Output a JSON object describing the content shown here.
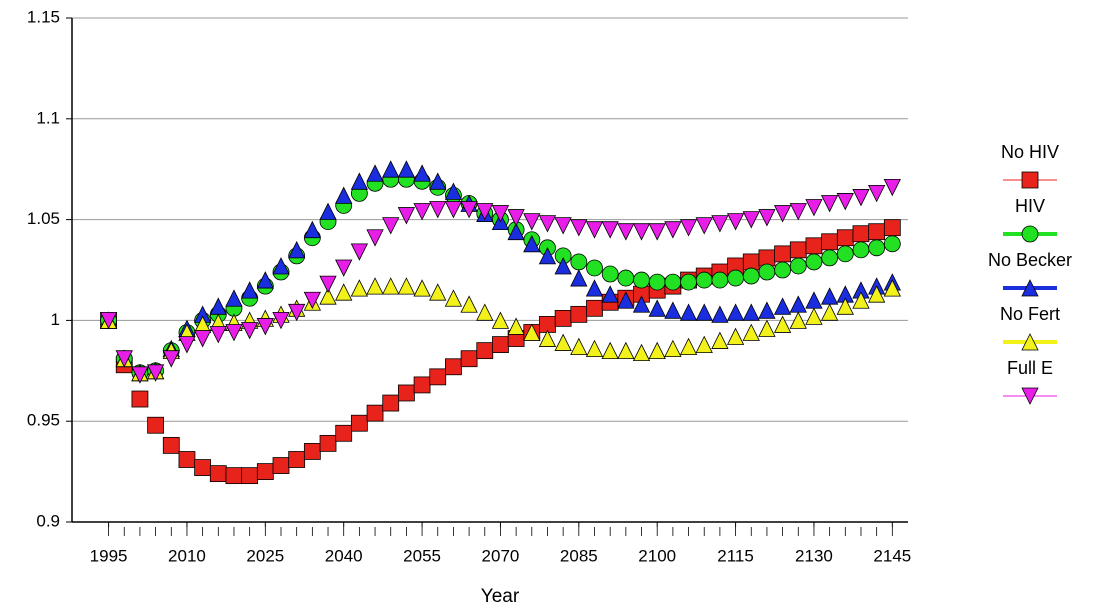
{
  "chart_data": {
    "type": "scatter",
    "xlabel": "Year",
    "x": [
      1995,
      1998,
      2001,
      2004,
      2007,
      2010,
      2013,
      2016,
      2019,
      2022,
      2025,
      2028,
      2031,
      2034,
      2037,
      2040,
      2043,
      2046,
      2049,
      2052,
      2055,
      2058,
      2061,
      2064,
      2067,
      2070,
      2073,
      2076,
      2079,
      2082,
      2085,
      2088,
      2091,
      2094,
      2097,
      2100,
      2103,
      2106,
      2109,
      2112,
      2115,
      2118,
      2121,
      2124,
      2127,
      2130,
      2133,
      2136,
      2139,
      2142,
      2145
    ],
    "xlim": [
      1988,
      2148
    ],
    "xticks": [
      1995,
      2010,
      2025,
      2040,
      2055,
      2070,
      2085,
      2100,
      2115,
      2130,
      2145
    ],
    "ylim": [
      0.9,
      1.15
    ],
    "yticks": [
      0.9,
      0.95,
      1,
      1.05,
      1.1,
      1.15
    ],
    "grid": true,
    "series": [
      {
        "name": "No HIV",
        "color": "#e8231c",
        "marker": "square",
        "values": [
          1.0,
          0.978,
          0.961,
          0.948,
          0.938,
          0.931,
          0.927,
          0.924,
          0.923,
          0.923,
          0.925,
          0.928,
          0.931,
          0.935,
          0.939,
          0.944,
          0.949,
          0.954,
          0.959,
          0.964,
          0.968,
          0.972,
          0.977,
          0.981,
          0.985,
          0.988,
          0.991,
          0.994,
          0.998,
          1.001,
          1.003,
          1.006,
          1.009,
          1.011,
          1.013,
          1.015,
          1.017,
          1.02,
          1.022,
          1.024,
          1.027,
          1.029,
          1.031,
          1.033,
          1.035,
          1.037,
          1.039,
          1.041,
          1.043,
          1.044,
          1.046
        ]
      },
      {
        "name": "HIV",
        "color": "#22e022",
        "marker": "circle",
        "values": [
          1.0,
          0.981,
          0.974,
          0.975,
          0.985,
          0.994,
          1.0,
          1.003,
          1.006,
          1.011,
          1.017,
          1.024,
          1.032,
          1.041,
          1.049,
          1.057,
          1.063,
          1.068,
          1.07,
          1.07,
          1.069,
          1.066,
          1.062,
          1.058,
          1.053,
          1.05,
          1.045,
          1.04,
          1.036,
          1.032,
          1.029,
          1.026,
          1.023,
          1.021,
          1.02,
          1.019,
          1.019,
          1.019,
          1.02,
          1.02,
          1.021,
          1.022,
          1.024,
          1.025,
          1.027,
          1.029,
          1.031,
          1.033,
          1.035,
          1.036,
          1.038
        ]
      },
      {
        "name": "No Becker",
        "color": "#1a2ee0",
        "marker": "triangle-up",
        "values": [
          1.0,
          0.981,
          0.974,
          0.975,
          0.986,
          0.996,
          1.003,
          1.007,
          1.011,
          1.015,
          1.02,
          1.027,
          1.035,
          1.045,
          1.054,
          1.062,
          1.069,
          1.073,
          1.075,
          1.075,
          1.073,
          1.069,
          1.064,
          1.058,
          1.053,
          1.049,
          1.044,
          1.038,
          1.032,
          1.027,
          1.021,
          1.016,
          1.013,
          1.01,
          1.008,
          1.006,
          1.005,
          1.004,
          1.004,
          1.003,
          1.004,
          1.004,
          1.005,
          1.007,
          1.008,
          1.01,
          1.012,
          1.013,
          1.015,
          1.017,
          1.019
        ]
      },
      {
        "name": "No Fert",
        "color": "#f2f21a",
        "marker": "triangle-up",
        "values": [
          1.0,
          0.981,
          0.974,
          0.975,
          0.985,
          0.994,
          0.998,
          0.999,
          0.999,
          1.0,
          1.001,
          1.003,
          1.006,
          1.009,
          1.012,
          1.014,
          1.016,
          1.017,
          1.017,
          1.017,
          1.016,
          1.014,
          1.011,
          1.008,
          1.004,
          1.0,
          0.997,
          0.994,
          0.991,
          0.989,
          0.987,
          0.986,
          0.985,
          0.985,
          0.984,
          0.985,
          0.986,
          0.987,
          0.988,
          0.99,
          0.992,
          0.994,
          0.996,
          0.998,
          1.0,
          1.002,
          1.004,
          1.007,
          1.01,
          1.013,
          1.016
        ]
      },
      {
        "name": "Full E",
        "color": "#e81ee8",
        "marker": "triangle-down",
        "values": [
          1.0,
          0.981,
          0.973,
          0.974,
          0.981,
          0.988,
          0.991,
          0.993,
          0.994,
          0.995,
          0.997,
          1.0,
          1.004,
          1.01,
          1.018,
          1.026,
          1.034,
          1.041,
          1.047,
          1.052,
          1.054,
          1.055,
          1.055,
          1.055,
          1.054,
          1.053,
          1.051,
          1.049,
          1.048,
          1.047,
          1.046,
          1.045,
          1.045,
          1.044,
          1.044,
          1.044,
          1.045,
          1.046,
          1.047,
          1.048,
          1.049,
          1.05,
          1.051,
          1.053,
          1.054,
          1.056,
          1.058,
          1.059,
          1.061,
          1.063,
          1.066
        ]
      }
    ]
  }
}
